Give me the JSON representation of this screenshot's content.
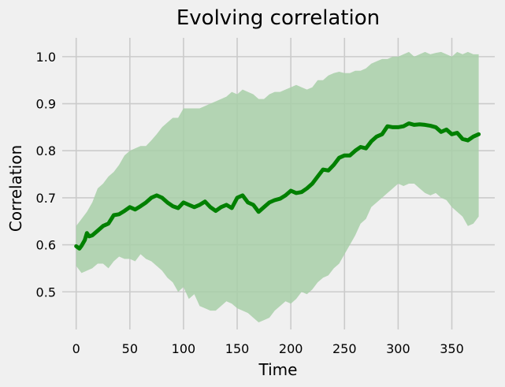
{
  "chart_data": {
    "type": "line",
    "title": "Evolving correlation",
    "xlabel": "Time",
    "ylabel": "Correlation",
    "xlim": [
      -13,
      390
    ],
    "ylim": [
      0.42,
      1.04
    ],
    "xticks": [
      0,
      50,
      100,
      150,
      200,
      250,
      300,
      350
    ],
    "yticks": [
      0.5,
      0.6,
      0.7,
      0.8,
      0.9,
      1.0
    ],
    "xtick_labels": [
      "0",
      "50",
      "100",
      "150",
      "200",
      "250",
      "300",
      "350"
    ],
    "ytick_labels": [
      "0.5",
      "0.6",
      "0.7",
      "0.8",
      "0.9",
      "1.0"
    ],
    "grid": true,
    "colors": {
      "line": "#008000",
      "band": "#a8cfa8",
      "grid": "#cbcbcb",
      "background": "#f0f0f0"
    },
    "series": [
      {
        "type": "line",
        "x": [
          0,
          3,
          5,
          8,
          10,
          12,
          15,
          20,
          25,
          30,
          35,
          40,
          45,
          50,
          55,
          60,
          65,
          70,
          75,
          80,
          85,
          90,
          95,
          100,
          105,
          110,
          115,
          120,
          125,
          130,
          135,
          140,
          145,
          150,
          155,
          160,
          165,
          170,
          175,
          180,
          185,
          190,
          195,
          200,
          205,
          210,
          215,
          220,
          225,
          230,
          235,
          240,
          245,
          250,
          255,
          260,
          265,
          270,
          275,
          280,
          285,
          290,
          295,
          300,
          305,
          310,
          315,
          320,
          325,
          330,
          335,
          340,
          345,
          350,
          355,
          360,
          365,
          370,
          375
        ],
        "values": [
          0.597,
          0.592,
          0.598,
          0.61,
          0.625,
          0.618,
          0.62,
          0.63,
          0.64,
          0.645,
          0.663,
          0.665,
          0.672,
          0.68,
          0.675,
          0.682,
          0.69,
          0.7,
          0.705,
          0.7,
          0.69,
          0.682,
          0.678,
          0.69,
          0.685,
          0.68,
          0.685,
          0.692,
          0.68,
          0.672,
          0.68,
          0.685,
          0.678,
          0.7,
          0.705,
          0.69,
          0.685,
          0.67,
          0.68,
          0.69,
          0.695,
          0.698,
          0.705,
          0.715,
          0.71,
          0.712,
          0.72,
          0.73,
          0.745,
          0.76,
          0.758,
          0.77,
          0.785,
          0.79,
          0.79,
          0.8,
          0.808,
          0.805,
          0.82,
          0.83,
          0.835,
          0.852,
          0.85,
          0.85,
          0.852,
          0.858,
          0.855,
          0.856,
          0.855,
          0.853,
          0.85,
          0.84,
          0.845,
          0.835,
          0.838,
          0.825,
          0.822,
          0.83,
          0.835
        ]
      },
      {
        "type": "band",
        "x": [
          0,
          5,
          10,
          15,
          20,
          25,
          30,
          35,
          40,
          45,
          50,
          55,
          60,
          65,
          70,
          75,
          80,
          85,
          90,
          95,
          100,
          105,
          110,
          115,
          120,
          125,
          130,
          135,
          140,
          145,
          150,
          155,
          160,
          165,
          170,
          175,
          180,
          185,
          190,
          195,
          200,
          205,
          210,
          215,
          220,
          225,
          230,
          235,
          240,
          245,
          250,
          255,
          260,
          265,
          270,
          275,
          280,
          285,
          290,
          295,
          300,
          305,
          310,
          315,
          320,
          325,
          330,
          335,
          340,
          345,
          350,
          355,
          360,
          365,
          370,
          375
        ],
        "upper": [
          0.64,
          0.655,
          0.67,
          0.69,
          0.72,
          0.73,
          0.745,
          0.755,
          0.77,
          0.79,
          0.8,
          0.805,
          0.81,
          0.81,
          0.822,
          0.835,
          0.85,
          0.86,
          0.87,
          0.87,
          0.89,
          0.89,
          0.89,
          0.89,
          0.895,
          0.9,
          0.905,
          0.91,
          0.915,
          0.925,
          0.92,
          0.93,
          0.925,
          0.92,
          0.91,
          0.91,
          0.92,
          0.925,
          0.925,
          0.93,
          0.935,
          0.94,
          0.935,
          0.93,
          0.935,
          0.95,
          0.95,
          0.96,
          0.965,
          0.968,
          0.965,
          0.965,
          0.97,
          0.97,
          0.975,
          0.985,
          0.99,
          0.995,
          0.995,
          1.0,
          1.0,
          1.005,
          1.01,
          1.0,
          1.005,
          1.01,
          1.005,
          1.008,
          1.01,
          1.005,
          1.0,
          1.01,
          1.005,
          1.01,
          1.005,
          1.005
        ],
        "lower": [
          0.555,
          0.54,
          0.545,
          0.55,
          0.56,
          0.56,
          0.55,
          0.565,
          0.575,
          0.57,
          0.57,
          0.565,
          0.58,
          0.57,
          0.565,
          0.555,
          0.545,
          0.53,
          0.52,
          0.5,
          0.51,
          0.485,
          0.495,
          0.47,
          0.465,
          0.46,
          0.46,
          0.47,
          0.48,
          0.475,
          0.465,
          0.46,
          0.455,
          0.445,
          0.435,
          0.44,
          0.445,
          0.46,
          0.47,
          0.48,
          0.475,
          0.485,
          0.5,
          0.495,
          0.505,
          0.52,
          0.53,
          0.535,
          0.55,
          0.56,
          0.58,
          0.6,
          0.62,
          0.645,
          0.655,
          0.68,
          0.69,
          0.7,
          0.71,
          0.72,
          0.73,
          0.725,
          0.73,
          0.73,
          0.72,
          0.71,
          0.705,
          0.71,
          0.7,
          0.695,
          0.68,
          0.67,
          0.66,
          0.64,
          0.645,
          0.66
        ]
      }
    ]
  }
}
